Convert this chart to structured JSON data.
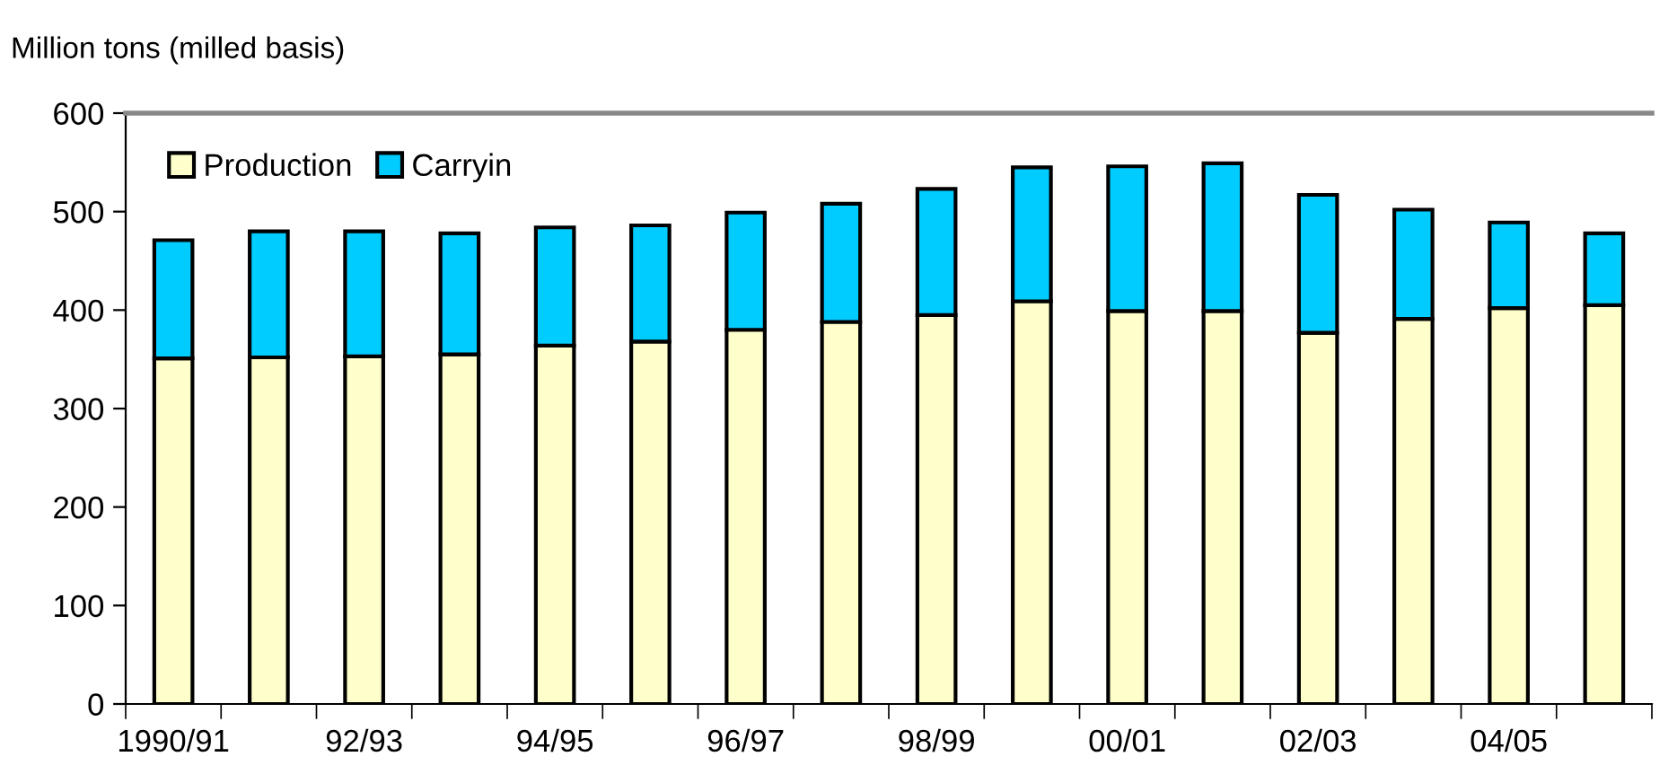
{
  "chart_data": {
    "type": "bar",
    "stacked": true,
    "ylabel": "Million tons (milled basis)",
    "categories": [
      "1990/91",
      null,
      "92/93",
      null,
      "94/95",
      null,
      "96/97",
      null,
      "98/99",
      null,
      "00/01",
      null,
      "02/03",
      null,
      "04/05",
      null
    ],
    "series": [
      {
        "name": "Production",
        "color": "#ffffcc",
        "values": [
          351,
          352,
          353,
          355,
          364,
          368,
          380,
          388,
          395,
          409,
          399,
          399,
          377,
          391,
          402,
          405
        ]
      },
      {
        "name": "Carryin",
        "color": "#00ccff",
        "values": [
          120,
          128,
          127,
          123,
          120,
          118,
          119,
          120,
          128,
          136,
          147,
          150,
          140,
          111,
          87,
          73
        ]
      }
    ],
    "ylim": [
      0,
      600
    ],
    "yticks": [
      0,
      100,
      200,
      300,
      400,
      500,
      600
    ],
    "grid": false,
    "legend": "top left"
  }
}
